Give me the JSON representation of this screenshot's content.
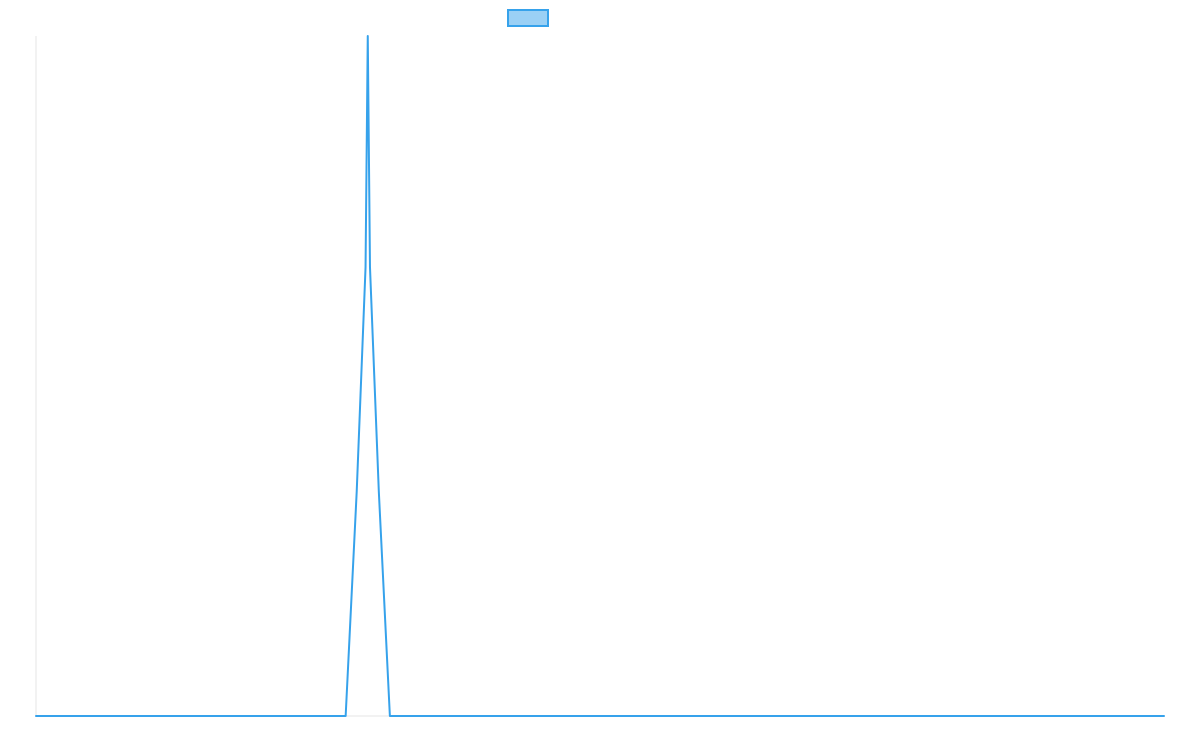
{
  "chart_data": {
    "type": "line",
    "title": "",
    "xlabel": "",
    "ylabel": "",
    "grid": false,
    "legend_placement": "top-center",
    "x_range": [
      0,
      102
    ],
    "y_range": [
      0,
      1
    ],
    "series": [
      {
        "name": "",
        "color": "#36a2eb",
        "fill_color": "#9ad0f5",
        "points": [
          [
            0,
            0
          ],
          [
            28,
            0
          ],
          [
            29,
            0.33
          ],
          [
            29.8,
            0.66
          ],
          [
            30,
            1.0
          ],
          [
            30.2,
            0.66
          ],
          [
            31,
            0.33
          ],
          [
            32,
            0
          ],
          [
            102,
            0
          ]
        ]
      }
    ]
  }
}
